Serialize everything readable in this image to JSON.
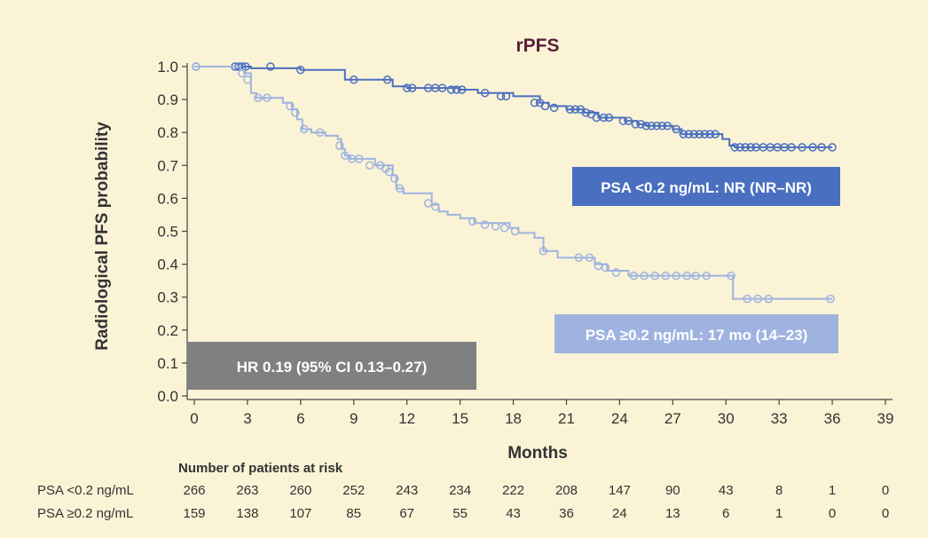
{
  "chart_data": {
    "type": "line",
    "title": "rPFS",
    "xlabel": "Months",
    "ylabel": "Radiological PFS probability",
    "xlim": [
      0,
      39
    ],
    "ylim": [
      0,
      1.0
    ],
    "x_ticks": [
      0,
      3,
      6,
      9,
      12,
      15,
      18,
      21,
      24,
      27,
      30,
      33,
      36,
      39
    ],
    "y_ticks": [
      "0.0",
      "0.1",
      "0.2",
      "0.3",
      "0.4",
      "0.5",
      "0.6",
      "0.7",
      "0.8",
      "0.9",
      "1.0"
    ],
    "grid": false,
    "series": [
      {
        "name": "PSA <0.2 ng/mL: NR (NR–NR)",
        "color": "#4a6fc0",
        "step": [
          [
            0,
            1.0
          ],
          [
            2.8,
            1.0
          ],
          [
            3.2,
            0.995
          ],
          [
            6.0,
            0.99
          ],
          [
            8.5,
            0.96
          ],
          [
            11.2,
            0.94
          ],
          [
            12.0,
            0.935
          ],
          [
            15.0,
            0.93
          ],
          [
            16.0,
            0.92
          ],
          [
            18.0,
            0.91
          ],
          [
            19.5,
            0.89
          ],
          [
            20.0,
            0.88
          ],
          [
            21.0,
            0.87
          ],
          [
            22.0,
            0.86
          ],
          [
            22.8,
            0.845
          ],
          [
            24.3,
            0.835
          ],
          [
            25.0,
            0.825
          ],
          [
            25.5,
            0.82
          ],
          [
            27.0,
            0.81
          ],
          [
            27.5,
            0.795
          ],
          [
            29.8,
            0.78
          ],
          [
            30.2,
            0.76
          ],
          [
            30.5,
            0.755
          ],
          [
            36.0,
            0.755
          ]
        ],
        "censored": [
          [
            0.1,
            1.0
          ],
          [
            2.3,
            1.0
          ],
          [
            2.5,
            1.0
          ],
          [
            2.7,
            1.0
          ],
          [
            2.9,
            1.0
          ],
          [
            4.3,
            1.0
          ],
          [
            6.0,
            0.99
          ],
          [
            9.0,
            0.96
          ],
          [
            10.9,
            0.96
          ],
          [
            12.0,
            0.935
          ],
          [
            12.3,
            0.935
          ],
          [
            13.2,
            0.935
          ],
          [
            13.6,
            0.935
          ],
          [
            14.0,
            0.935
          ],
          [
            14.5,
            0.93
          ],
          [
            14.8,
            0.93
          ],
          [
            15.1,
            0.93
          ],
          [
            16.4,
            0.92
          ],
          [
            17.3,
            0.91
          ],
          [
            17.6,
            0.91
          ],
          [
            19.2,
            0.89
          ],
          [
            19.5,
            0.89
          ],
          [
            19.8,
            0.88
          ],
          [
            20.3,
            0.875
          ],
          [
            21.2,
            0.87
          ],
          [
            21.5,
            0.87
          ],
          [
            21.8,
            0.87
          ],
          [
            22.1,
            0.86
          ],
          [
            22.4,
            0.855
          ],
          [
            22.7,
            0.845
          ],
          [
            23.1,
            0.845
          ],
          [
            23.4,
            0.845
          ],
          [
            24.2,
            0.835
          ],
          [
            24.5,
            0.835
          ],
          [
            24.9,
            0.825
          ],
          [
            25.2,
            0.825
          ],
          [
            25.5,
            0.82
          ],
          [
            25.8,
            0.82
          ],
          [
            26.1,
            0.82
          ],
          [
            26.4,
            0.82
          ],
          [
            26.7,
            0.82
          ],
          [
            27.2,
            0.81
          ],
          [
            27.6,
            0.795
          ],
          [
            27.9,
            0.795
          ],
          [
            28.2,
            0.795
          ],
          [
            28.5,
            0.795
          ],
          [
            28.8,
            0.795
          ],
          [
            29.1,
            0.795
          ],
          [
            29.4,
            0.795
          ],
          [
            30.5,
            0.755
          ],
          [
            30.8,
            0.755
          ],
          [
            31.1,
            0.755
          ],
          [
            31.4,
            0.755
          ],
          [
            31.7,
            0.755
          ],
          [
            32.1,
            0.755
          ],
          [
            32.5,
            0.755
          ],
          [
            32.9,
            0.755
          ],
          [
            33.3,
            0.755
          ],
          [
            33.7,
            0.755
          ],
          [
            34.3,
            0.755
          ],
          [
            34.9,
            0.755
          ],
          [
            35.4,
            0.755
          ],
          [
            36.0,
            0.755
          ]
        ]
      },
      {
        "name": "PSA ≥0.2 ng/mL: 17 mo (14–23)",
        "color": "#9eb3e0",
        "step": [
          [
            0,
            1.0
          ],
          [
            2.6,
            0.99
          ],
          [
            2.8,
            0.98
          ],
          [
            3.2,
            0.92
          ],
          [
            3.5,
            0.905
          ],
          [
            5.0,
            0.89
          ],
          [
            5.5,
            0.87
          ],
          [
            5.8,
            0.84
          ],
          [
            6.1,
            0.81
          ],
          [
            6.6,
            0.8
          ],
          [
            7.4,
            0.79
          ],
          [
            8.1,
            0.78
          ],
          [
            8.3,
            0.75
          ],
          [
            8.5,
            0.73
          ],
          [
            8.8,
            0.72
          ],
          [
            10.2,
            0.7
          ],
          [
            11.2,
            0.67
          ],
          [
            11.4,
            0.63
          ],
          [
            11.8,
            0.615
          ],
          [
            13.4,
            0.58
          ],
          [
            13.8,
            0.56
          ],
          [
            14.3,
            0.55
          ],
          [
            15.0,
            0.54
          ],
          [
            15.8,
            0.525
          ],
          [
            17.8,
            0.51
          ],
          [
            18.3,
            0.495
          ],
          [
            19.2,
            0.48
          ],
          [
            19.7,
            0.44
          ],
          [
            20.5,
            0.42
          ],
          [
            22.0,
            0.42
          ],
          [
            22.6,
            0.4
          ],
          [
            23.3,
            0.38
          ],
          [
            24.5,
            0.365
          ],
          [
            30.3,
            0.365
          ],
          [
            30.4,
            0.295
          ],
          [
            36.0,
            0.295
          ]
        ],
        "censored": [
          [
            0.1,
            1.0
          ],
          [
            2.7,
            0.98
          ],
          [
            3.0,
            0.96
          ],
          [
            3.6,
            0.905
          ],
          [
            4.1,
            0.905
          ],
          [
            5.4,
            0.88
          ],
          [
            5.7,
            0.86
          ],
          [
            6.2,
            0.81
          ],
          [
            7.1,
            0.8
          ],
          [
            8.2,
            0.76
          ],
          [
            8.5,
            0.73
          ],
          [
            8.9,
            0.72
          ],
          [
            9.3,
            0.72
          ],
          [
            9.9,
            0.7
          ],
          [
            10.5,
            0.7
          ],
          [
            10.8,
            0.69
          ],
          [
            11.0,
            0.68
          ],
          [
            11.3,
            0.66
          ],
          [
            11.6,
            0.63
          ],
          [
            13.2,
            0.585
          ],
          [
            13.6,
            0.575
          ],
          [
            15.7,
            0.53
          ],
          [
            16.4,
            0.52
          ],
          [
            17.0,
            0.515
          ],
          [
            17.5,
            0.51
          ],
          [
            18.1,
            0.5
          ],
          [
            19.7,
            0.44
          ],
          [
            21.7,
            0.42
          ],
          [
            22.3,
            0.42
          ],
          [
            22.8,
            0.395
          ],
          [
            23.2,
            0.39
          ],
          [
            23.8,
            0.375
          ],
          [
            24.8,
            0.365
          ],
          [
            25.4,
            0.365
          ],
          [
            26.0,
            0.365
          ],
          [
            26.6,
            0.365
          ],
          [
            27.2,
            0.365
          ],
          [
            27.8,
            0.365
          ],
          [
            28.3,
            0.365
          ],
          [
            28.9,
            0.365
          ],
          [
            30.3,
            0.365
          ],
          [
            31.2,
            0.295
          ],
          [
            31.8,
            0.295
          ],
          [
            32.4,
            0.295
          ],
          [
            35.9,
            0.295
          ]
        ]
      }
    ],
    "annotations": {
      "hr_box": "HR 0.19 (95% CI 0.13–0.27)",
      "hr_color": "#808080"
    },
    "risk_table": {
      "title": "Number of patients at risk",
      "timepoints": [
        0,
        3,
        6,
        9,
        12,
        15,
        18,
        21,
        24,
        27,
        30,
        33,
        36,
        39
      ],
      "rows": [
        {
          "label": "PSA <0.2 ng/mL",
          "values": [
            "266",
            "263",
            "260",
            "252",
            "243",
            "234",
            "222",
            "208",
            "147",
            "90",
            "43",
            "8",
            "1",
            "0"
          ]
        },
        {
          "label": "PSA ≥0.2 ng/mL",
          "values": [
            "159",
            "138",
            "107",
            "85",
            "67",
            "55",
            "43",
            "36",
            "24",
            "13",
            "6",
            "1",
            "0",
            "0"
          ]
        }
      ]
    }
  }
}
